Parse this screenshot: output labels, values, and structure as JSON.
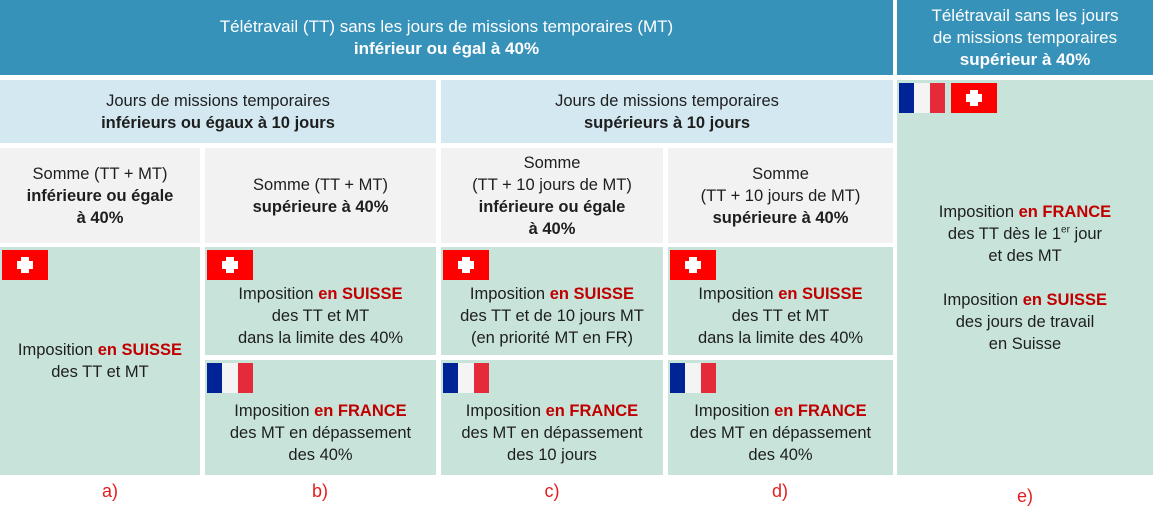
{
  "header_main": {
    "line1": "Télétravail (TT) sans les jours de missions temporaires (MT)",
    "line2": "inférieur ou égal à 40%"
  },
  "header_right": {
    "line1": "Télétravail sans les jours",
    "line2": "de missions temporaires",
    "line3": "supérieur à 40%"
  },
  "sub_left": {
    "line1": "Jours de missions temporaires",
    "line2": "inférieurs ou égaux à 10 jours"
  },
  "sub_right": {
    "line1": "Jours de missions temporaires",
    "line2": "supérieurs à 10 jours"
  },
  "cond_a": {
    "line1": "Somme (TT + MT)",
    "line2": "inférieure ou égale",
    "line3": "à 40%"
  },
  "cond_b": {
    "line1": "Somme (TT + MT)",
    "line2": "supérieure à 40%"
  },
  "cond_c": {
    "line1": "Somme",
    "line2": "(TT + 10 jours de MT)",
    "line3": "inférieure ou égale",
    "line4": "à 40%"
  },
  "cond_d": {
    "line1": "Somme",
    "line2": "(TT + 10 jours de MT)",
    "line3": "supérieure à 40%"
  },
  "common": {
    "imposition": "Imposition",
    "suisse": "en SUISSE",
    "france": "en FRANCE"
  },
  "res_a": {
    "line2": "des TT et MT"
  },
  "res_b_ch": {
    "line2": "des TT et MT",
    "line3": "dans la limite des 40%"
  },
  "res_b_fr": {
    "line2": "des MT en dépassement",
    "line3": "des 40%"
  },
  "res_c_ch": {
    "line2": "des TT et de 10 jours MT",
    "line3": "(en priorité MT en FR)"
  },
  "res_c_fr": {
    "line2": "des MT en dépassement",
    "line3": "des 10 jours"
  },
  "res_d_ch": {
    "line2": "des TT et MT",
    "line3": "dans la limite des 40%"
  },
  "res_d_fr": {
    "line2": "des MT en dépassement",
    "line3": "des 40%"
  },
  "res_e": {
    "fr_line2a": "des TT dès le 1",
    "fr_line2sup": "er",
    "fr_line2b": " jour",
    "fr_line3": "et des MT",
    "ch_line2": "des jours de travail",
    "ch_line3": "en Suisse"
  },
  "labels": [
    "a)",
    "b)",
    "c)",
    "d)",
    "e)"
  ],
  "colors": {
    "header": "#3792b9",
    "sub": "#d3e8f0",
    "cond": "#f2f2f2",
    "result": "#c8e4da",
    "emphasis": "#c00000",
    "label": "#e02020"
  },
  "icons": {
    "swiss": "swiss-flag-icon",
    "french": "french-flag-icon"
  }
}
